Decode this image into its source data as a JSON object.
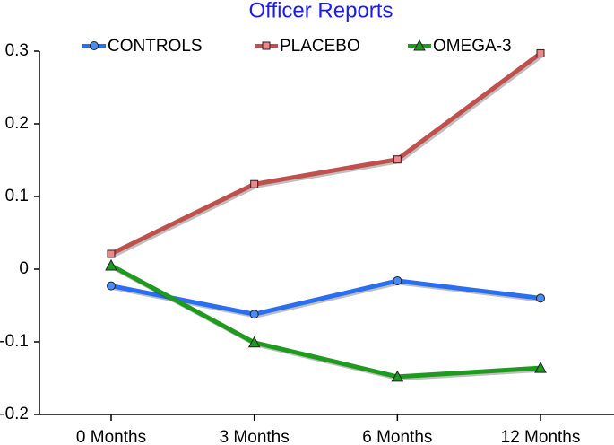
{
  "chart_data": {
    "type": "line",
    "title": "Officer Reports",
    "categories": [
      "0 Months",
      "3 Months",
      "6 Months",
      "12 Months"
    ],
    "series": [
      {
        "name": "CONTROLS",
        "color": "#2a6ff0",
        "marker": "circle",
        "values": [
          -0.023,
          -0.062,
          -0.016,
          -0.04
        ]
      },
      {
        "name": "PLACEBO",
        "color": "#c0504d",
        "marker": "square",
        "values": [
          0.021,
          0.117,
          0.151,
          0.297
        ]
      },
      {
        "name": "OMEGA-3",
        "color": "#1e9a1e",
        "marker": "triangle",
        "values": [
          0.005,
          -0.101,
          -0.148,
          -0.136
        ]
      }
    ],
    "ylim": [
      -0.2,
      0.3
    ],
    "yticks": [
      -0.2,
      -0.1,
      0,
      0.1,
      0.2,
      0.3
    ],
    "grid": false
  }
}
